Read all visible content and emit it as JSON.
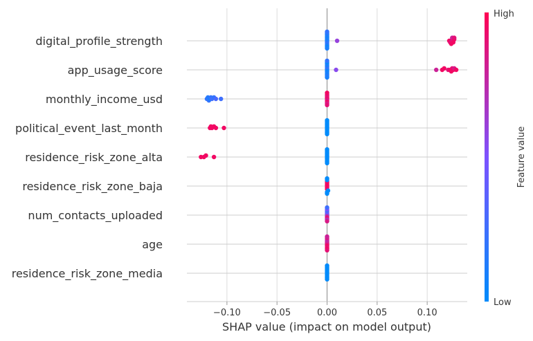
{
  "chart_data": {
    "type": "scatter",
    "subtype": "shap-beeswarm",
    "title": "",
    "xlabel": "SHAP value (impact on model output)",
    "ylabel": "",
    "xlim": [
      -0.14,
      0.14
    ],
    "xticks": [
      {
        "value": -0.1,
        "label": "−0.10"
      },
      {
        "value": -0.05,
        "label": "−0.05"
      },
      {
        "value": 0.0,
        "label": "0.00"
      },
      {
        "value": 0.05,
        "label": "0.05"
      },
      {
        "value": 0.1,
        "label": "0.10"
      }
    ],
    "grid": true,
    "colorbar": {
      "label": "Feature value",
      "high_label": "High",
      "low_label": "Low",
      "low_color": "#008bfb",
      "high_color": "#ff0052"
    },
    "features": [
      {
        "name": "digital_profile_strength",
        "points": [
          {
            "x": 0.0,
            "v": 0.05
          },
          {
            "x": 0.0,
            "v": 0.1
          },
          {
            "x": 0.0,
            "v": 0.15
          },
          {
            "x": 0.0,
            "v": 0.1
          },
          {
            "x": 0.0,
            "v": 0.2
          },
          {
            "x": 0.0,
            "v": 0.08
          },
          {
            "x": 0.0,
            "v": 0.12
          },
          {
            "x": 0.0,
            "v": 0.1
          },
          {
            "x": 0.0,
            "v": 0.05
          },
          {
            "x": 0.0,
            "v": 0.15
          },
          {
            "x": 0.0,
            "v": 0.1
          },
          {
            "x": 0.0,
            "v": 0.2
          },
          {
            "x": 0.01,
            "v": 0.6
          },
          {
            "x": 0.122,
            "v": 0.95
          },
          {
            "x": 0.124,
            "v": 0.9
          },
          {
            "x": 0.125,
            "v": 0.95
          },
          {
            "x": 0.126,
            "v": 0.85
          },
          {
            "x": 0.127,
            "v": 0.95
          },
          {
            "x": 0.123,
            "v": 0.9
          },
          {
            "x": 0.125,
            "v": 0.8
          },
          {
            "x": 0.126,
            "v": 0.95
          },
          {
            "x": 0.124,
            "v": 0.95
          },
          {
            "x": 0.127,
            "v": 0.9
          }
        ]
      },
      {
        "name": "app_usage_score",
        "points": [
          {
            "x": 0.0,
            "v": 0.1
          },
          {
            "x": 0.0,
            "v": 0.15
          },
          {
            "x": 0.0,
            "v": 0.05
          },
          {
            "x": 0.0,
            "v": 0.2
          },
          {
            "x": 0.0,
            "v": 0.1
          },
          {
            "x": 0.0,
            "v": 0.12
          },
          {
            "x": 0.0,
            "v": 0.08
          },
          {
            "x": 0.0,
            "v": 0.1
          },
          {
            "x": 0.0,
            "v": 0.15
          },
          {
            "x": 0.0,
            "v": 0.05
          },
          {
            "x": 0.0,
            "v": 0.1
          },
          {
            "x": 0.0,
            "v": 0.2
          },
          {
            "x": 0.009,
            "v": 0.55
          },
          {
            "x": 0.109,
            "v": 0.8
          },
          {
            "x": 0.115,
            "v": 0.95
          },
          {
            "x": 0.117,
            "v": 0.95
          },
          {
            "x": 0.121,
            "v": 0.9
          },
          {
            "x": 0.123,
            "v": 0.95
          },
          {
            "x": 0.125,
            "v": 0.9
          },
          {
            "x": 0.126,
            "v": 0.95
          },
          {
            "x": 0.127,
            "v": 0.85
          },
          {
            "x": 0.129,
            "v": 0.95
          },
          {
            "x": 0.124,
            "v": 0.95
          }
        ]
      },
      {
        "name": "monthly_income_usd",
        "points": [
          {
            "x": -0.12,
            "v": 0.2
          },
          {
            "x": -0.119,
            "v": 0.15
          },
          {
            "x": -0.117,
            "v": 0.1
          },
          {
            "x": -0.116,
            "v": 0.2
          },
          {
            "x": -0.115,
            "v": 0.25
          },
          {
            "x": -0.113,
            "v": 0.2
          },
          {
            "x": -0.111,
            "v": 0.3
          },
          {
            "x": -0.106,
            "v": 0.25
          },
          {
            "x": -0.118,
            "v": 0.2
          },
          {
            "x": 0.0,
            "v": 0.9
          },
          {
            "x": 0.0,
            "v": 0.95
          },
          {
            "x": 0.0,
            "v": 0.85
          },
          {
            "x": 0.0,
            "v": 0.9
          },
          {
            "x": 0.0,
            "v": 0.95
          },
          {
            "x": 0.0,
            "v": 0.9
          },
          {
            "x": 0.0,
            "v": 0.85
          },
          {
            "x": 0.0,
            "v": 0.95
          },
          {
            "x": 0.0,
            "v": 0.9
          }
        ]
      },
      {
        "name": "political_event_last_month",
        "points": [
          {
            "x": -0.117,
            "v": 0.95
          },
          {
            "x": -0.115,
            "v": 0.95
          },
          {
            "x": -0.113,
            "v": 0.95
          },
          {
            "x": -0.111,
            "v": 0.95
          },
          {
            "x": -0.103,
            "v": 0.95
          },
          {
            "x": -0.116,
            "v": 0.95
          },
          {
            "x": 0.0,
            "v": 0.0
          },
          {
            "x": 0.0,
            "v": 0.0
          },
          {
            "x": 0.0,
            "v": 0.0
          },
          {
            "x": 0.0,
            "v": 0.0
          },
          {
            "x": 0.0,
            "v": 0.0
          },
          {
            "x": 0.0,
            "v": 0.0
          },
          {
            "x": 0.0,
            "v": 0.0
          },
          {
            "x": 0.0,
            "v": 0.0
          },
          {
            "x": 0.0,
            "v": 0.0
          },
          {
            "x": 0.0,
            "v": 0.0
          }
        ]
      },
      {
        "name": "residence_risk_zone_alta",
        "points": [
          {
            "x": -0.126,
            "v": 0.95
          },
          {
            "x": -0.123,
            "v": 0.95
          },
          {
            "x": -0.121,
            "v": 0.95
          },
          {
            "x": -0.113,
            "v": 0.95
          },
          {
            "x": 0.0,
            "v": 0.0
          },
          {
            "x": 0.0,
            "v": 0.0
          },
          {
            "x": 0.0,
            "v": 0.0
          },
          {
            "x": 0.0,
            "v": 0.0
          },
          {
            "x": 0.0,
            "v": 0.0
          },
          {
            "x": 0.0,
            "v": 0.0
          },
          {
            "x": 0.0,
            "v": 0.0
          },
          {
            "x": 0.0,
            "v": 0.0
          },
          {
            "x": 0.0,
            "v": 0.0
          },
          {
            "x": 0.0,
            "v": 0.0
          }
        ]
      },
      {
        "name": "residence_risk_zone_baja",
        "points": [
          {
            "x": 0.0,
            "v": 0.95
          },
          {
            "x": 0.0,
            "v": 0.95
          },
          {
            "x": 0.0,
            "v": 0.95
          },
          {
            "x": 0.0,
            "v": 0.95
          },
          {
            "x": 0.0,
            "v": 0.95
          },
          {
            "x": 0.0,
            "v": 0.95
          },
          {
            "x": 0.001,
            "v": 0.0
          },
          {
            "x": 0.0,
            "v": 0.0
          },
          {
            "x": 0.0,
            "v": 0.0
          },
          {
            "x": 0.0,
            "v": 0.0
          },
          {
            "x": 0.0,
            "v": 0.0
          }
        ]
      },
      {
        "name": "num_contacts_uploaded",
        "points": [
          {
            "x": 0.0,
            "v": 0.2
          },
          {
            "x": 0.0,
            "v": 0.6
          },
          {
            "x": 0.0,
            "v": 0.8
          },
          {
            "x": 0.0,
            "v": 0.4
          },
          {
            "x": 0.0,
            "v": 0.9
          },
          {
            "x": 0.0,
            "v": 0.3
          },
          {
            "x": 0.0,
            "v": 0.7
          },
          {
            "x": 0.0,
            "v": 0.5
          },
          {
            "x": 0.0,
            "v": 0.85
          },
          {
            "x": 0.0,
            "v": 0.25
          }
        ]
      },
      {
        "name": "age",
        "points": [
          {
            "x": 0.0,
            "v": 0.9
          },
          {
            "x": 0.0,
            "v": 0.85
          },
          {
            "x": 0.0,
            "v": 0.95
          },
          {
            "x": 0.0,
            "v": 0.8
          },
          {
            "x": 0.0,
            "v": 0.9
          },
          {
            "x": 0.0,
            "v": 0.75
          },
          {
            "x": 0.0,
            "v": 0.95
          },
          {
            "x": 0.0,
            "v": 0.85
          },
          {
            "x": 0.0,
            "v": 0.9
          },
          {
            "x": 0.0,
            "v": 0.8
          }
        ]
      },
      {
        "name": "residence_risk_zone_media",
        "points": [
          {
            "x": 0.0,
            "v": 0.0
          },
          {
            "x": 0.0,
            "v": 0.0
          },
          {
            "x": 0.0,
            "v": 0.0
          },
          {
            "x": 0.0,
            "v": 0.0
          },
          {
            "x": 0.0,
            "v": 0.0
          },
          {
            "x": 0.0,
            "v": 0.0
          },
          {
            "x": 0.0,
            "v": 0.0
          },
          {
            "x": 0.0,
            "v": 0.0
          },
          {
            "x": 0.0,
            "v": 0.0
          },
          {
            "x": 0.0,
            "v": 0.0
          }
        ]
      }
    ]
  }
}
